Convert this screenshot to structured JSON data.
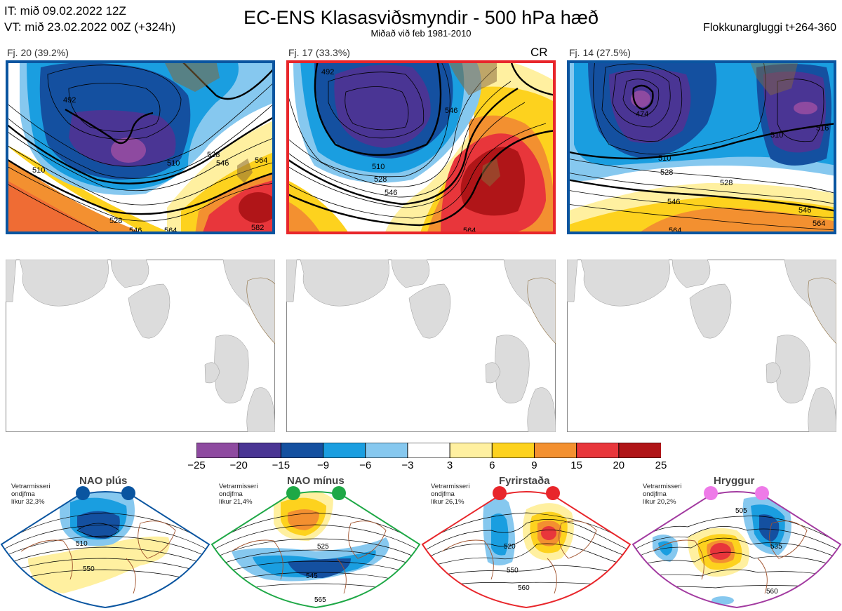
{
  "header": {
    "it_line": "IT: mið 09.02.2022 12Z",
    "vt_line": "VT: mið 23.02.2022 00Z  (+324h)",
    "title": "EC-ENS Klasasviðsmyndir - 500 hPa hæð",
    "subtitle": "Miðað við feb 1981-2010",
    "window": "Flokkunargluggi t+264-360"
  },
  "clusters": [
    {
      "label": "Fj. 20 (39.2%)",
      "frame_color": "#0a55a0",
      "tag": "",
      "contours": [
        "510",
        "528",
        "546",
        "564",
        "492",
        "510",
        "528",
        "546",
        "564",
        "582"
      ]
    },
    {
      "label": "Fj. 17 (33.3%)",
      "frame_color": "#e8262b",
      "tag": "CR",
      "contours": [
        "492",
        "510",
        "528",
        "546",
        "564",
        "546"
      ]
    },
    {
      "label": "Fj. 14 (27.5%)",
      "frame_color": "#0a55a0",
      "tag": "",
      "contours": [
        "474",
        "510",
        "528",
        "546",
        "564",
        "516",
        "546",
        "564"
      ]
    }
  ],
  "colorbar": {
    "colors": [
      "#8e4aa0",
      "#4a3594",
      "#1450a0",
      "#1a9ee0",
      "#86c8ef",
      "#ffffff",
      "#fff0a0",
      "#fdd21e",
      "#f39030",
      "#e8363b",
      "#b01518"
    ],
    "ticks": [
      "−25",
      "−20",
      "−15",
      "−9",
      "−6",
      "−3",
      "3",
      "6",
      "9",
      "15",
      "20",
      "25"
    ]
  },
  "regimes": [
    {
      "name": "NAO plús",
      "note": [
        "Vetrarmisseri",
        "ondjfma",
        "líkur 32,3%"
      ],
      "color": "#0a55a0",
      "contours": [
        "510",
        "550"
      ]
    },
    {
      "name": "NAO mínus",
      "note": [
        "Vetrarmisseri",
        "ondjfma",
        "líkur 21,4%"
      ],
      "color": "#1ea846",
      "contours": [
        "525",
        "545",
        "565"
      ]
    },
    {
      "name": "Fyrirstaða",
      "note": [
        "Vetrarmisseri",
        "ondjfma",
        "líkur 26,1%"
      ],
      "color": "#e8262b",
      "contours": [
        "520",
        "550",
        "560"
      ]
    },
    {
      "name": "Hryggur",
      "note": [
        "Vetrarmisseri",
        "ondjfma",
        "líkur 20,2%"
      ],
      "color": "#a23aa0",
      "contours": [
        "505",
        "535",
        "560"
      ]
    }
  ]
}
